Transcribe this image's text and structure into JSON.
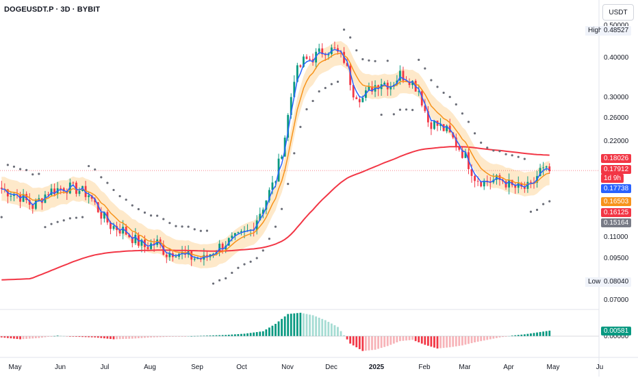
{
  "header": {
    "symbol_title": "DOGEUSDT.P · 3D · BYBIT",
    "currency": "USDT"
  },
  "price_axis": {
    "ticks": [
      "0.50000",
      "0.40000",
      "0.30000",
      "0.26000",
      "0.22000",
      "0.11000",
      "0.09500",
      "0.07000"
    ],
    "high_label": "High",
    "high_value": "0.48527",
    "low_label": "Low",
    "low_value": "0.08040"
  },
  "price_tags": [
    {
      "value": "0.18026",
      "color": "#f23645"
    },
    {
      "value": "0.17912",
      "color": "#f23645"
    },
    {
      "value": "1d 9h",
      "color": "#f23645"
    },
    {
      "value": "0.17738",
      "color": "#2962ff"
    },
    {
      "value": "0.16503",
      "color": "#f7931a"
    },
    {
      "value": "0.16125",
      "color": "#f23645"
    },
    {
      "value": "0.15164",
      "color": "#787b86"
    }
  ],
  "indicator_axis": {
    "ticks": [
      "0.00000"
    ],
    "tag_value": "0.00581",
    "tag_color": "#089981"
  },
  "time_axis": {
    "labels": [
      "May",
      "Jun",
      "Jul",
      "Aug",
      "Sep",
      "Oct",
      "Nov",
      "Dec",
      "2025",
      "Feb",
      "Mar",
      "Apr",
      "May",
      "Ju"
    ]
  },
  "colors": {
    "up": "#089981",
    "down": "#f23645",
    "ema_fast": "#2962ff",
    "ema_mid": "#f7931a",
    "ema_slow": "#f23645",
    "band": "#fde0b3",
    "psar": "#6b6e78"
  },
  "chart_data": {
    "type": "candlestick",
    "title": "DOGEUSDT.P · 3D · BYBIT",
    "y_scale": "log",
    "ylim": [
      0.068,
      0.52
    ],
    "x_labels": [
      "May",
      "Jun",
      "Jul",
      "Aug",
      "Sep",
      "Oct",
      "Nov",
      "Dec",
      "2025",
      "Feb",
      "Mar",
      "Apr",
      "May",
      "Ju"
    ],
    "price_path": [
      [
        0,
        0.158
      ],
      [
        6,
        0.15
      ],
      [
        10,
        0.14
      ],
      [
        15,
        0.155
      ],
      [
        20,
        0.16
      ],
      [
        24,
        0.158
      ],
      [
        28,
        0.152
      ],
      [
        32,
        0.132
      ],
      [
        35,
        0.122
      ],
      [
        39,
        0.118
      ],
      [
        43,
        0.11
      ],
      [
        46,
        0.105
      ],
      [
        50,
        0.108
      ],
      [
        53,
        0.1
      ],
      [
        56,
        0.102
      ],
      [
        59,
        0.098
      ],
      [
        62,
        0.097
      ],
      [
        65,
        0.096
      ],
      [
        68,
        0.102
      ],
      [
        72,
        0.108
      ],
      [
        76,
        0.112
      ],
      [
        80,
        0.118
      ],
      [
        84,
        0.14
      ],
      [
        88,
        0.17
      ],
      [
        91,
        0.23
      ],
      [
        94,
        0.35
      ],
      [
        97,
        0.39
      ],
      [
        100,
        0.4
      ],
      [
        104,
        0.425
      ],
      [
        107,
        0.42
      ],
      [
        110,
        0.395
      ],
      [
        113,
        0.315
      ],
      [
        116,
        0.3
      ],
      [
        119,
        0.325
      ],
      [
        122,
        0.338
      ],
      [
        125,
        0.33
      ],
      [
        128,
        0.355
      ],
      [
        131,
        0.345
      ],
      [
        134,
        0.318
      ],
      [
        137,
        0.255
      ],
      [
        140,
        0.248
      ],
      [
        143,
        0.238
      ],
      [
        146,
        0.218
      ],
      [
        149,
        0.198
      ],
      [
        152,
        0.172
      ],
      [
        155,
        0.166
      ],
      [
        158,
        0.168
      ],
      [
        161,
        0.168
      ],
      [
        164,
        0.16
      ],
      [
        167,
        0.158
      ],
      [
        170,
        0.16
      ],
      [
        173,
        0.18
      ],
      [
        176,
        0.178
      ]
    ],
    "last_close": 0.17912,
    "high": 0.48527,
    "low": 0.0804,
    "series": [
      {
        "name": "",
        "kind": "ema_fast"
      },
      {
        "name": "",
        "kind": "ema_mid_band"
      },
      {
        "name": "",
        "kind": "ema_slow"
      },
      {
        "name": "",
        "kind": "parabolic_sar"
      }
    ],
    "indicator": {
      "type": "histogram",
      "last_value": 0.00581,
      "profile": [
        [
          0,
          -0.2
        ],
        [
          6,
          -0.5
        ],
        [
          12,
          -0.3
        ],
        [
          18,
          0.1
        ],
        [
          24,
          -0.1
        ],
        [
          30,
          -0.2
        ],
        [
          36,
          -0.5
        ],
        [
          42,
          -0.4
        ],
        [
          48,
          -0.2
        ],
        [
          54,
          -0.1
        ],
        [
          60,
          0.0
        ],
        [
          66,
          0.1
        ],
        [
          72,
          0.2
        ],
        [
          78,
          0.4
        ],
        [
          84,
          0.8
        ],
        [
          88,
          2.0
        ],
        [
          92,
          3.6
        ],
        [
          96,
          3.8
        ],
        [
          100,
          3.4
        ],
        [
          104,
          2.6
        ],
        [
          108,
          1.5
        ],
        [
          112,
          -1.2
        ],
        [
          116,
          -2.4
        ],
        [
          120,
          -2.2
        ],
        [
          124,
          -1.6
        ],
        [
          128,
          -0.8
        ],
        [
          132,
          -0.6
        ],
        [
          136,
          -1.4
        ],
        [
          140,
          -2.0
        ],
        [
          144,
          -1.8
        ],
        [
          148,
          -1.5
        ],
        [
          152,
          -1.0
        ],
        [
          156,
          -0.6
        ],
        [
          160,
          -0.2
        ],
        [
          164,
          0.1
        ],
        [
          168,
          0.3
        ],
        [
          172,
          0.6
        ],
        [
          176,
          0.9
        ]
      ]
    }
  }
}
